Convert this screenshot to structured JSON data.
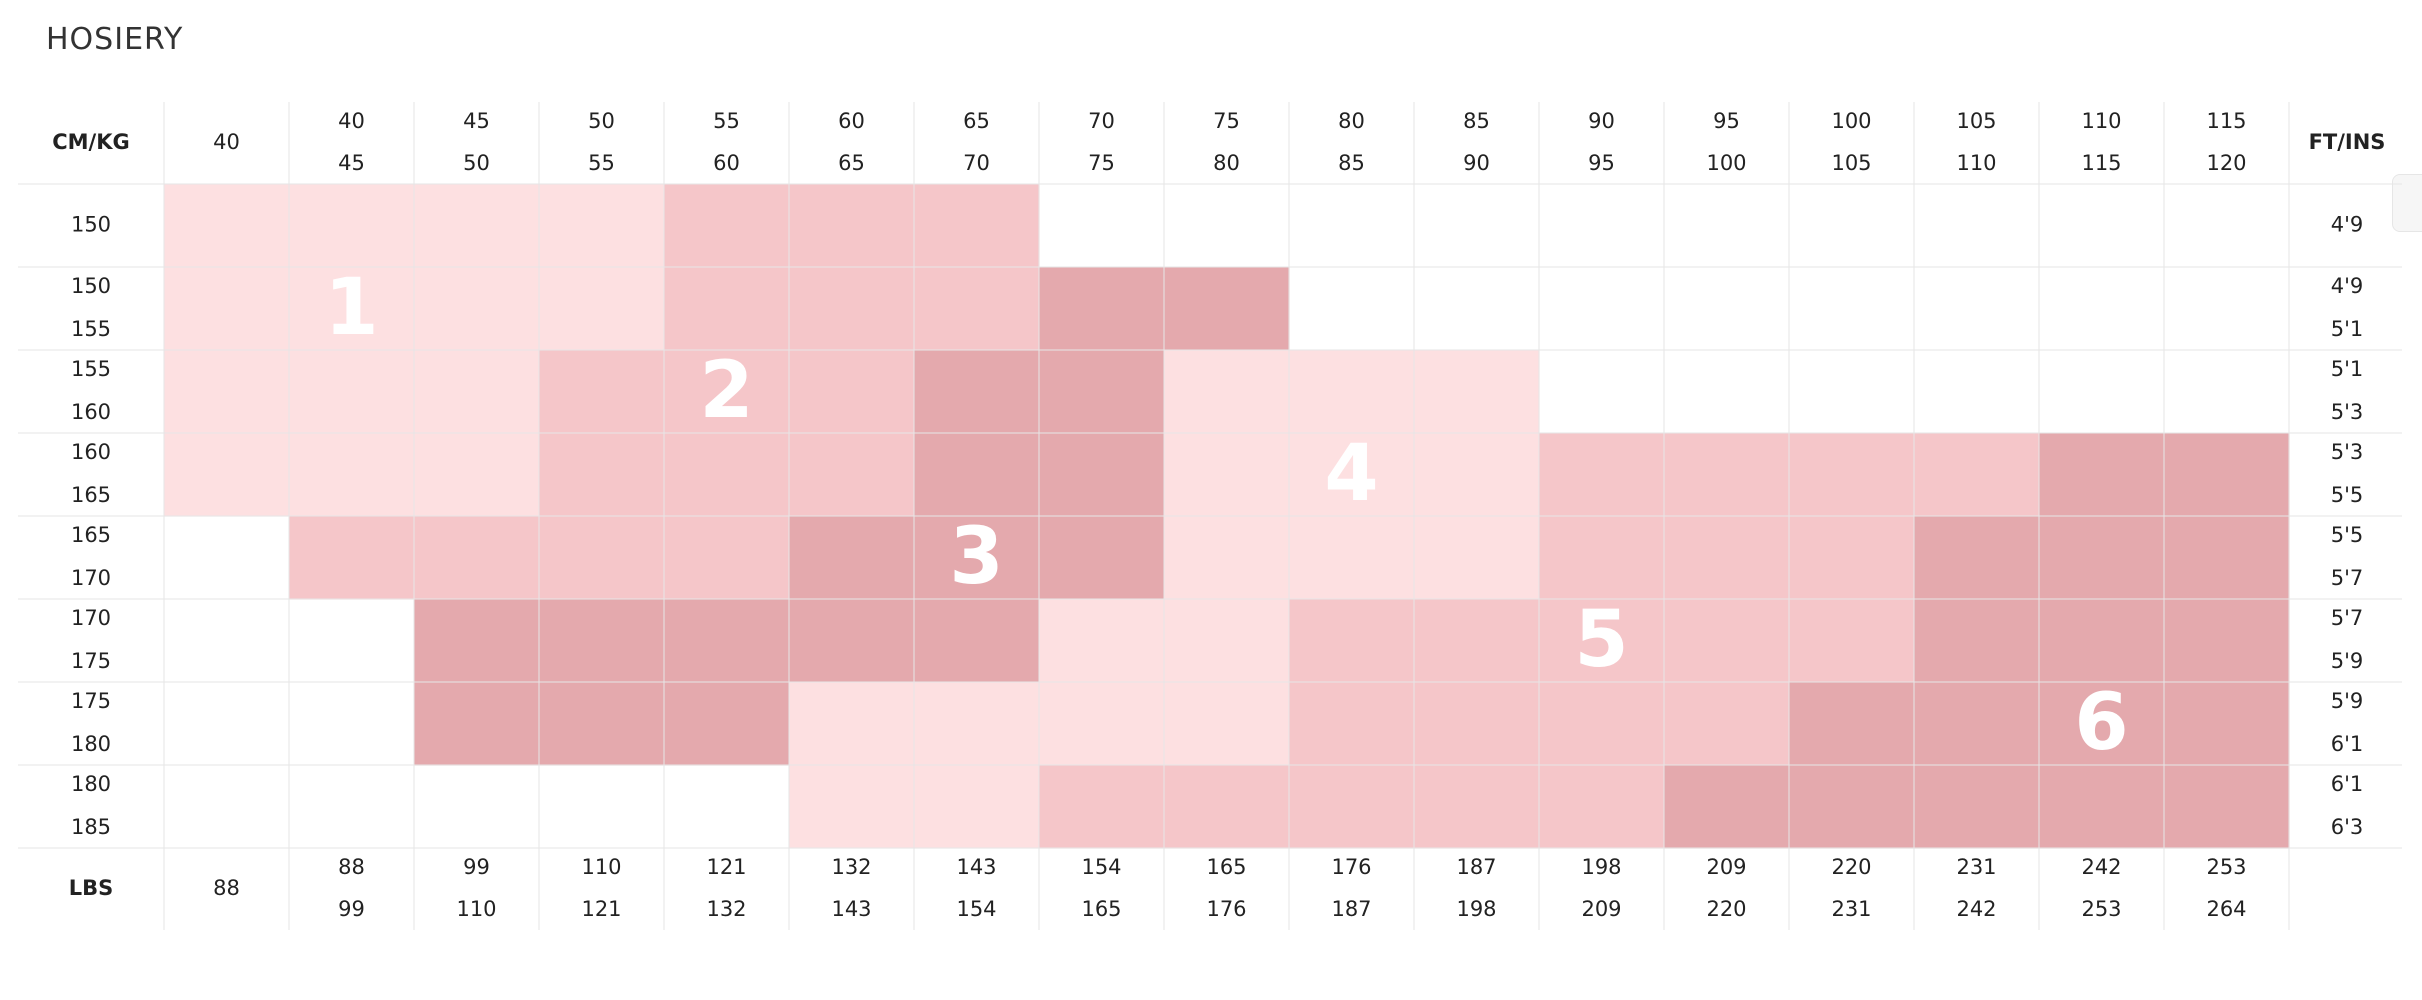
{
  "title": "HOSIERY",
  "colors": {
    "zone_light": "#fde0e1",
    "zone_medium": "#f5c6c9",
    "zone_dark": "#e4a9ad",
    "grid": "#e6e6e6",
    "zone_text": "#ffffff"
  },
  "header": {
    "left": "CM/KG",
    "right": "FT/INS",
    "bottom_left": "LBS"
  },
  "kg_columns": [
    {
      "top": "40",
      "bottom": ""
    },
    {
      "top": "40",
      "bottom": "45"
    },
    {
      "top": "45",
      "bottom": "50"
    },
    {
      "top": "50",
      "bottom": "55"
    },
    {
      "top": "55",
      "bottom": "60"
    },
    {
      "top": "60",
      "bottom": "65"
    },
    {
      "top": "65",
      "bottom": "70"
    },
    {
      "top": "70",
      "bottom": "75"
    },
    {
      "top": "75",
      "bottom": "80"
    },
    {
      "top": "80",
      "bottom": "85"
    },
    {
      "top": "85",
      "bottom": "90"
    },
    {
      "top": "90",
      "bottom": "95"
    },
    {
      "top": "95",
      "bottom": "100"
    },
    {
      "top": "100",
      "bottom": "105"
    },
    {
      "top": "105",
      "bottom": "110"
    },
    {
      "top": "110",
      "bottom": "115"
    },
    {
      "top": "115",
      "bottom": "120"
    }
  ],
  "lbs_columns": [
    {
      "top": "88",
      "bottom": ""
    },
    {
      "top": "88",
      "bottom": "99"
    },
    {
      "top": "99",
      "bottom": "110"
    },
    {
      "top": "110",
      "bottom": "121"
    },
    {
      "top": "121",
      "bottom": "132"
    },
    {
      "top": "132",
      "bottom": "143"
    },
    {
      "top": "143",
      "bottom": "154"
    },
    {
      "top": "154",
      "bottom": "165"
    },
    {
      "top": "165",
      "bottom": "176"
    },
    {
      "top": "176",
      "bottom": "187"
    },
    {
      "top": "187",
      "bottom": "198"
    },
    {
      "top": "198",
      "bottom": "209"
    },
    {
      "top": "209",
      "bottom": "220"
    },
    {
      "top": "220",
      "bottom": "231"
    },
    {
      "top": "231",
      "bottom": "242"
    },
    {
      "top": "242",
      "bottom": "253"
    },
    {
      "top": "253",
      "bottom": "264"
    }
  ],
  "cm_rows": [
    {
      "top": "150",
      "bottom": ""
    },
    {
      "top": "150",
      "bottom": "155"
    },
    {
      "top": "155",
      "bottom": "160"
    },
    {
      "top": "160",
      "bottom": "165"
    },
    {
      "top": "165",
      "bottom": "170"
    },
    {
      "top": "170",
      "bottom": "175"
    },
    {
      "top": "175",
      "bottom": "180"
    },
    {
      "top": "180",
      "bottom": "185"
    }
  ],
  "ftin_rows": [
    {
      "top": "4'9",
      "bottom": ""
    },
    {
      "top": "4'9",
      "bottom": "5'1"
    },
    {
      "top": "5'1",
      "bottom": "5'3"
    },
    {
      "top": "5'3",
      "bottom": "5'5"
    },
    {
      "top": "5'5",
      "bottom": "5'7"
    },
    {
      "top": "5'7",
      "bottom": "5'9"
    },
    {
      "top": "5'9",
      "bottom": "6'1"
    },
    {
      "top": "6'1",
      "bottom": "6'3"
    }
  ],
  "zone_grid": [
    [
      1,
      1,
      1,
      1,
      2,
      2,
      2,
      0,
      0,
      0,
      0,
      0,
      0,
      0,
      0,
      0,
      0
    ],
    [
      1,
      1,
      1,
      1,
      2,
      2,
      2,
      3,
      3,
      0,
      0,
      0,
      0,
      0,
      0,
      0,
      0
    ],
    [
      1,
      1,
      1,
      2,
      2,
      2,
      3,
      3,
      4,
      4,
      4,
      0,
      0,
      0,
      0,
      0,
      0
    ],
    [
      1,
      1,
      1,
      2,
      2,
      2,
      3,
      3,
      4,
      4,
      4,
      5,
      5,
      5,
      5,
      6,
      6
    ],
    [
      0,
      2,
      2,
      2,
      2,
      3,
      3,
      3,
      4,
      4,
      4,
      5,
      5,
      5,
      6,
      6,
      6
    ],
    [
      0,
      0,
      3,
      3,
      3,
      3,
      3,
      4,
      4,
      5,
      5,
      5,
      5,
      5,
      6,
      6,
      6
    ],
    [
      0,
      0,
      3,
      3,
      3,
      4,
      4,
      4,
      4,
      5,
      5,
      5,
      5,
      6,
      6,
      6,
      6
    ],
    [
      0,
      0,
      0,
      0,
      0,
      4,
      4,
      5,
      5,
      5,
      5,
      5,
      6,
      6,
      6,
      6,
      6
    ]
  ],
  "zones": [
    {
      "id": 1,
      "label": "1",
      "tone": "light",
      "label_col": 1.5,
      "label_row": 1.5
    },
    {
      "id": 2,
      "label": "2",
      "tone": "medium",
      "label_col": 4.5,
      "label_row": 2.5
    },
    {
      "id": 3,
      "label": "3",
      "tone": "dark",
      "label_col": 6.5,
      "label_row": 4.5
    },
    {
      "id": 4,
      "label": "4",
      "tone": "light",
      "label_col": 9.5,
      "label_row": 3.5
    },
    {
      "id": 5,
      "label": "5",
      "tone": "medium",
      "label_col": 11.5,
      "label_row": 5.5
    },
    {
      "id": 6,
      "label": "6",
      "tone": "dark",
      "label_col": 15.5,
      "label_row": 6.5
    }
  ]
}
